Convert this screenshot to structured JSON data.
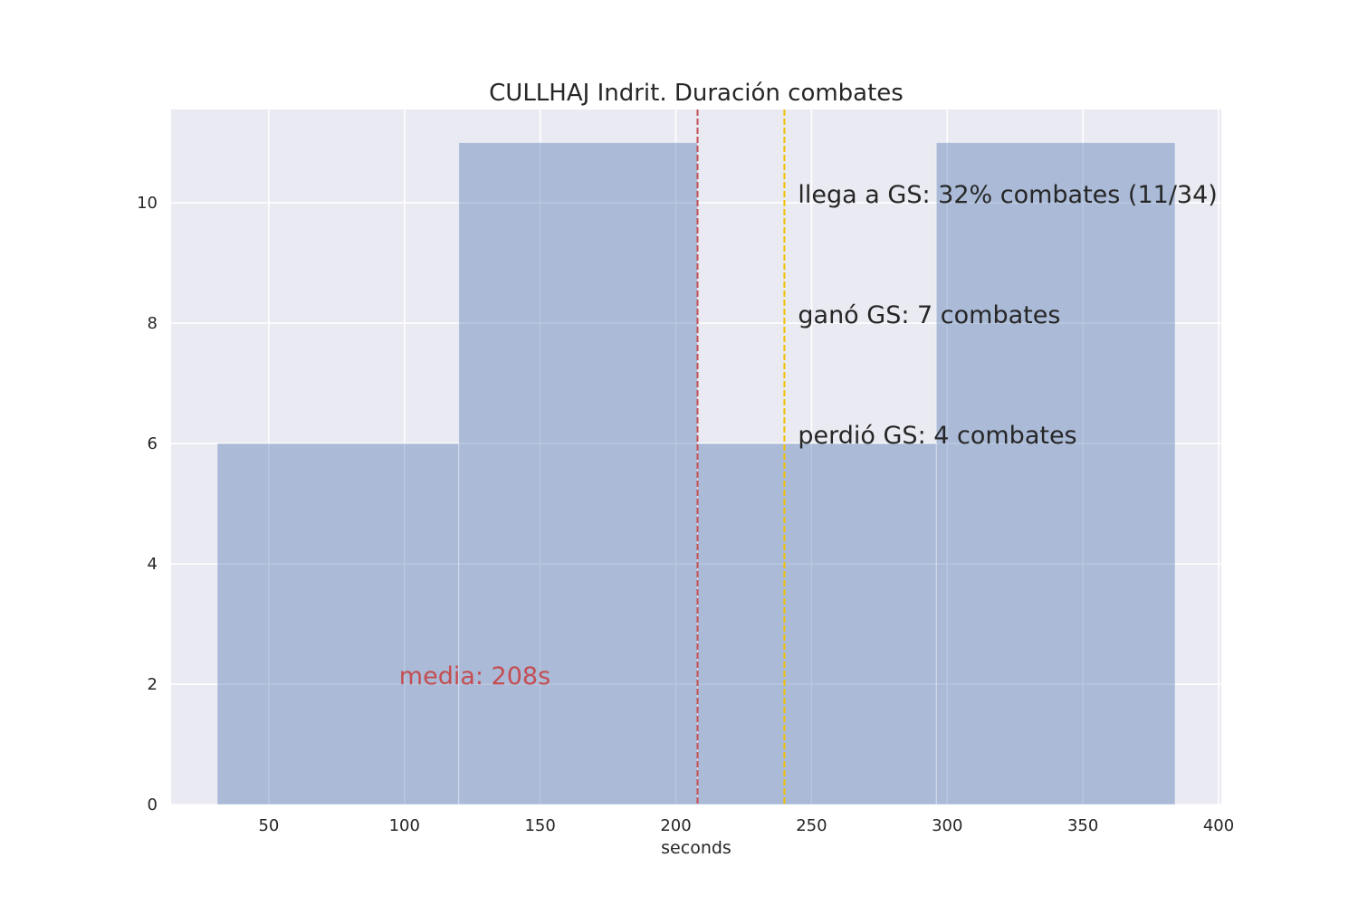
{
  "chart_data": {
    "type": "bar",
    "subtype": "histogram",
    "title": "CULLHAJ Indrit. Duración combates",
    "xlabel": "seconds",
    "ylabel": "",
    "xlim": [
      14,
      401
    ],
    "ylim": [
      0,
      11.55
    ],
    "xticks": [
      50,
      100,
      150,
      200,
      250,
      300,
      350,
      400
    ],
    "yticks": [
      0,
      2,
      4,
      6,
      8,
      10
    ],
    "grid": true,
    "bins": [
      {
        "x0": 31,
        "x1": 120,
        "count": 6
      },
      {
        "x0": 120,
        "x1": 208,
        "count": 11
      },
      {
        "x0": 208,
        "x1": 296,
        "count": 6
      },
      {
        "x0": 296,
        "x1": 384,
        "count": 11
      }
    ],
    "bar_color": "#4c72b0",
    "mean_line": {
      "x": 208,
      "color": "#c44e52",
      "label": "media: 208s",
      "label_x": 98,
      "label_y": 2
    },
    "gs_line": {
      "x": 240,
      "color": "#f0c000"
    },
    "annotations": [
      {
        "text": "llega a GS: 32% combates (11/34)",
        "x": 245,
        "y": 10
      },
      {
        "text": "ganó GS: 7 combates",
        "x": 245,
        "y": 8
      },
      {
        "text": "perdió GS: 4 combates",
        "x": 245,
        "y": 6
      }
    ]
  }
}
